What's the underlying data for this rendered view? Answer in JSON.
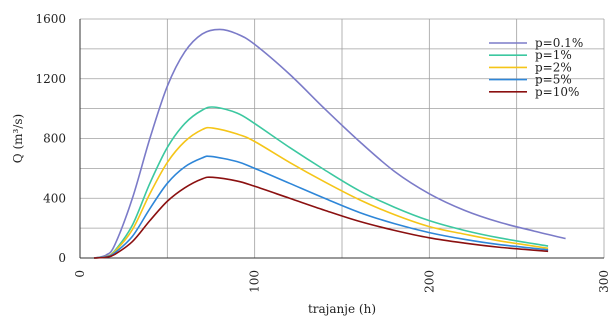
{
  "chart_data": {
    "type": "line",
    "title": "",
    "xlabel": "trajanje (h)",
    "ylabel": "Q (m³/s)",
    "xlim": [
      0,
      300
    ],
    "ylim": [
      0,
      1600
    ],
    "x_ticks": [
      0,
      100,
      200,
      300
    ],
    "y_ticks": [
      0,
      400,
      800,
      1200,
      1600
    ],
    "grid": true,
    "legend_position": "top-right",
    "series": [
      {
        "name": "p=0.1%",
        "color": "#7b7bc8",
        "x": [
          8,
          15,
          20,
          30,
          40,
          50,
          60,
          70,
          80,
          90,
          100,
          120,
          140,
          160,
          180,
          200,
          220,
          240,
          260,
          278
        ],
        "y": [
          0,
          20,
          90,
          400,
          800,
          1150,
          1380,
          1500,
          1530,
          1500,
          1430,
          1230,
          1000,
          780,
          580,
          430,
          320,
          240,
          180,
          130
        ]
      },
      {
        "name": "p=1%",
        "color": "#3cc8a0",
        "x": [
          8,
          15,
          20,
          30,
          40,
          50,
          60,
          70,
          77,
          90,
          100,
          120,
          140,
          160,
          180,
          200,
          220,
          240,
          268
        ],
        "y": [
          0,
          10,
          50,
          220,
          500,
          740,
          900,
          990,
          1010,
          970,
          900,
          740,
          590,
          450,
          340,
          250,
          185,
          135,
          80
        ]
      },
      {
        "name": "p=2%",
        "color": "#f5c518",
        "x": [
          8,
          15,
          20,
          30,
          40,
          50,
          60,
          70,
          76,
          90,
          100,
          120,
          140,
          160,
          180,
          200,
          220,
          240,
          268
        ],
        "y": [
          0,
          10,
          45,
          190,
          430,
          640,
          780,
          860,
          870,
          830,
          780,
          640,
          510,
          390,
          290,
          210,
          160,
          115,
          65
        ]
      },
      {
        "name": "p=5%",
        "color": "#2e86d8",
        "x": [
          8,
          15,
          20,
          30,
          40,
          50,
          60,
          70,
          75,
          90,
          100,
          120,
          140,
          160,
          180,
          200,
          220,
          240,
          268
        ],
        "y": [
          0,
          8,
          35,
          145,
          330,
          500,
          610,
          670,
          680,
          645,
          600,
          500,
          400,
          305,
          230,
          170,
          125,
          90,
          55
        ]
      },
      {
        "name": "p=10%",
        "color": "#8b1010",
        "x": [
          8,
          15,
          20,
          30,
          40,
          50,
          60,
          70,
          76,
          90,
          100,
          120,
          140,
          160,
          180,
          200,
          220,
          240,
          268
        ],
        "y": [
          0,
          5,
          25,
          110,
          250,
          380,
          470,
          530,
          540,
          515,
          480,
          400,
          320,
          245,
          185,
          135,
          100,
          72,
          45
        ]
      }
    ]
  }
}
